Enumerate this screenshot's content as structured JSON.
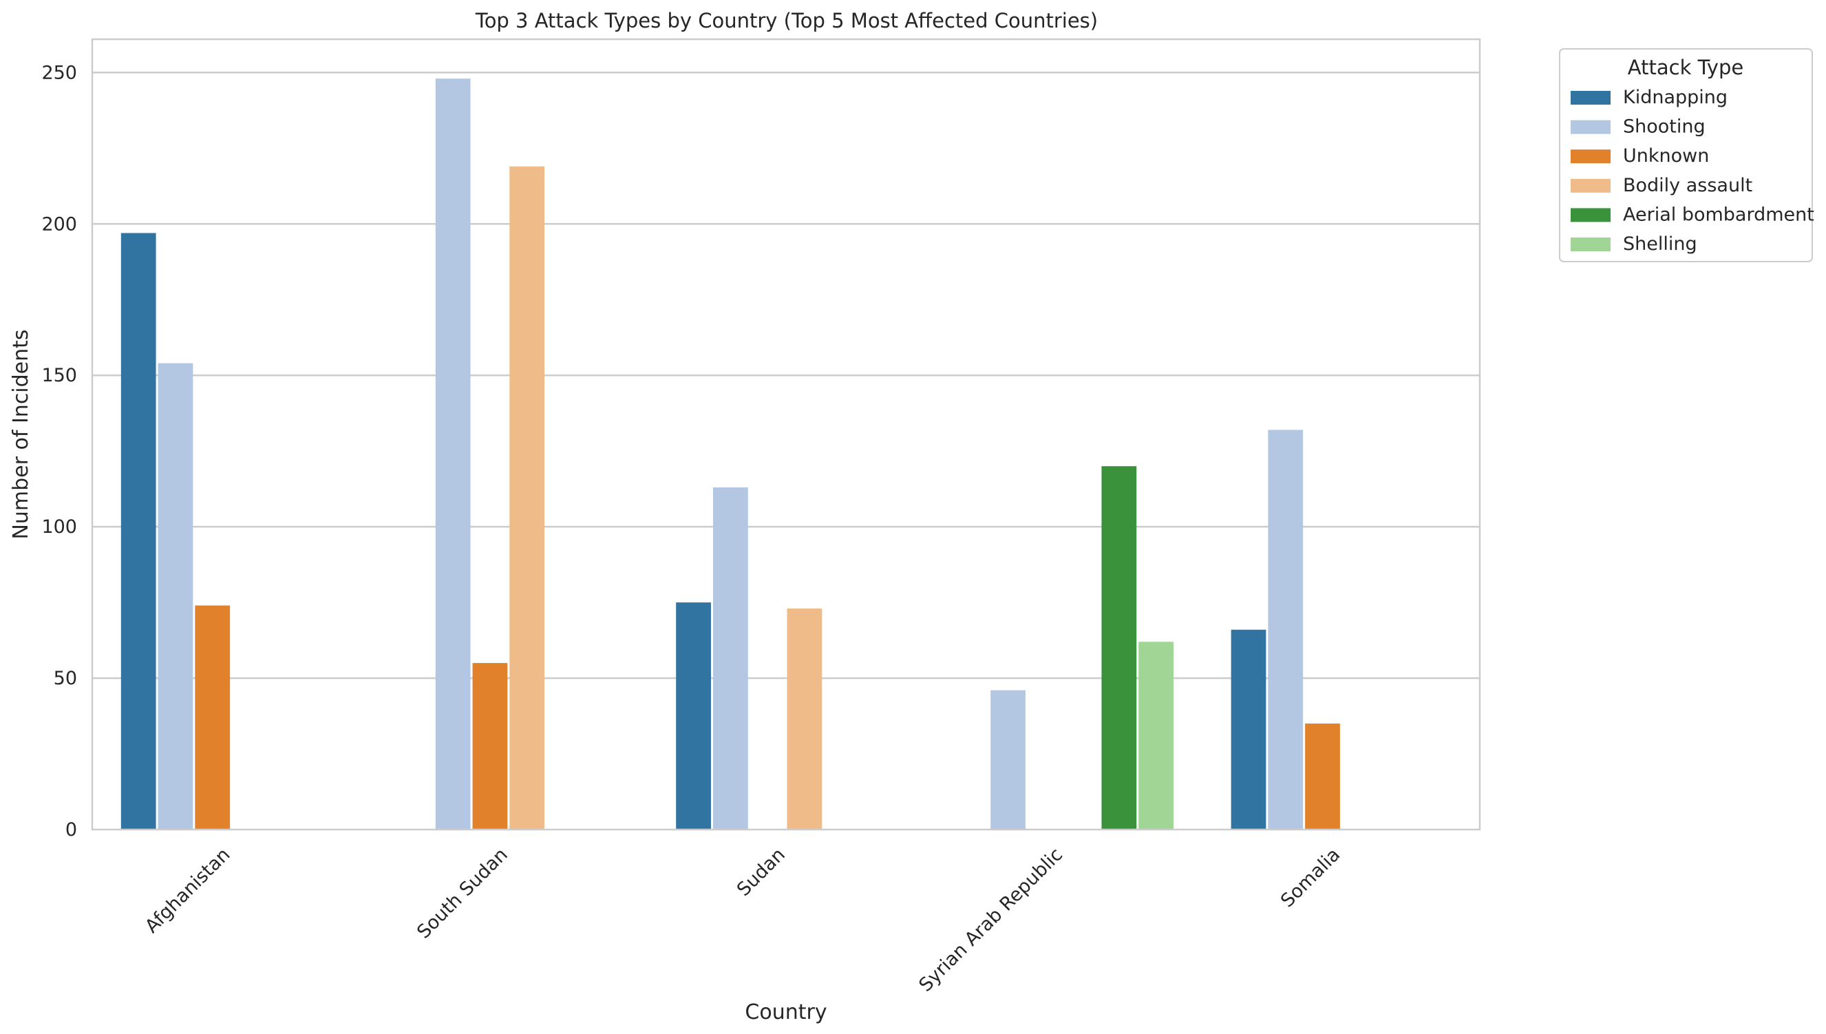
{
  "chart_data": {
    "type": "bar",
    "title": "Top 3 Attack Types by Country (Top 5 Most Affected Countries)",
    "xlabel": "Country",
    "ylabel": "Number of Incidents",
    "ylim": [
      0,
      261
    ],
    "yticks": [
      0,
      50,
      100,
      150,
      200,
      250
    ],
    "grid": true,
    "legend_title": "Attack Type",
    "legend_position": "outside top-right",
    "categories": [
      "Afghanistan",
      "South Sudan",
      "Sudan",
      "Syrian Arab Republic",
      "Somalia"
    ],
    "series": [
      {
        "name": "Kidnapping",
        "color": "#3274a1",
        "values": [
          197,
          0,
          75,
          0,
          66
        ]
      },
      {
        "name": "Shooting",
        "color": "#b3c7e3",
        "values": [
          154,
          248,
          113,
          46,
          132
        ]
      },
      {
        "name": "Unknown",
        "color": "#e1812c",
        "values": [
          74,
          55,
          0,
          0,
          35
        ]
      },
      {
        "name": "Bodily assault",
        "color": "#efbb88",
        "values": [
          0,
          219,
          73,
          0,
          0
        ]
      },
      {
        "name": "Aerial bombardment",
        "color": "#3a923a",
        "values": [
          0,
          0,
          0,
          120,
          0
        ]
      },
      {
        "name": "Shelling",
        "color": "#a0d595",
        "values": [
          0,
          0,
          0,
          62,
          0
        ]
      }
    ]
  }
}
